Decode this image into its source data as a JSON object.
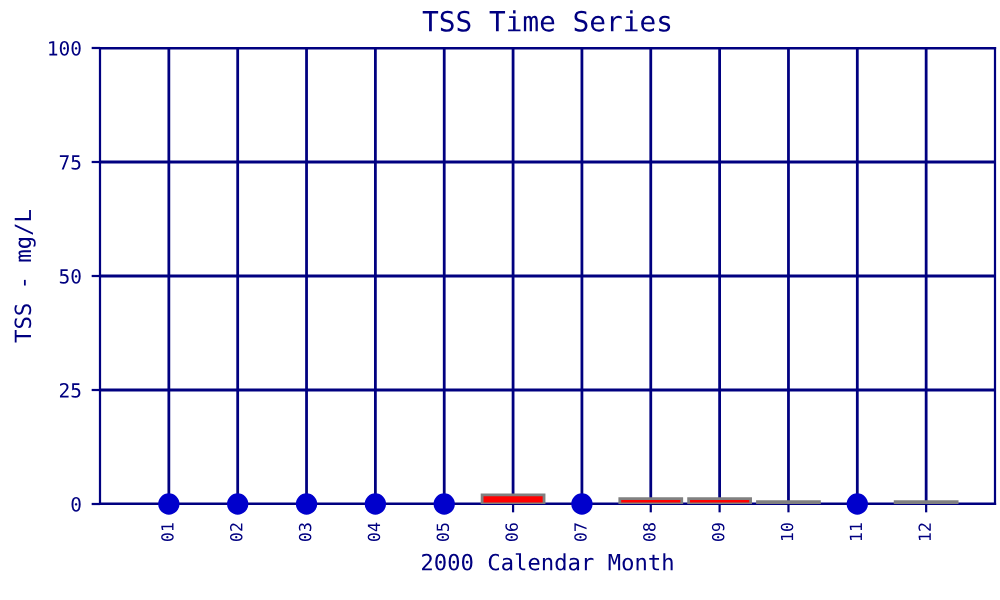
{
  "chart_data": {
    "type": "bar",
    "title": "TSS Time Series",
    "xlabel": "2000 Calendar Month",
    "ylabel": "TSS - mg/L",
    "categories": [
      "01",
      "02",
      "03",
      "04",
      "05",
      "06",
      "07",
      "08",
      "09",
      "10",
      "11",
      "12"
    ],
    "series": [
      {
        "color": "#ff0000",
        "values": [
          null,
          null,
          null,
          null,
          null,
          2,
          null,
          1.2,
          1.2,
          0.5,
          null,
          0.5
        ]
      },
      {
        "type": "scatter",
        "color": "#0000cc",
        "x": [
          "01",
          "02",
          "03",
          "04",
          "05",
          "07",
          "11"
        ],
        "values": [
          0,
          0,
          0,
          0,
          0,
          0,
          0
        ]
      }
    ],
    "ylim": [
      0,
      100
    ],
    "yticks": [
      0,
      25,
      50,
      75,
      100
    ],
    "grid": true,
    "marker": "circle"
  }
}
